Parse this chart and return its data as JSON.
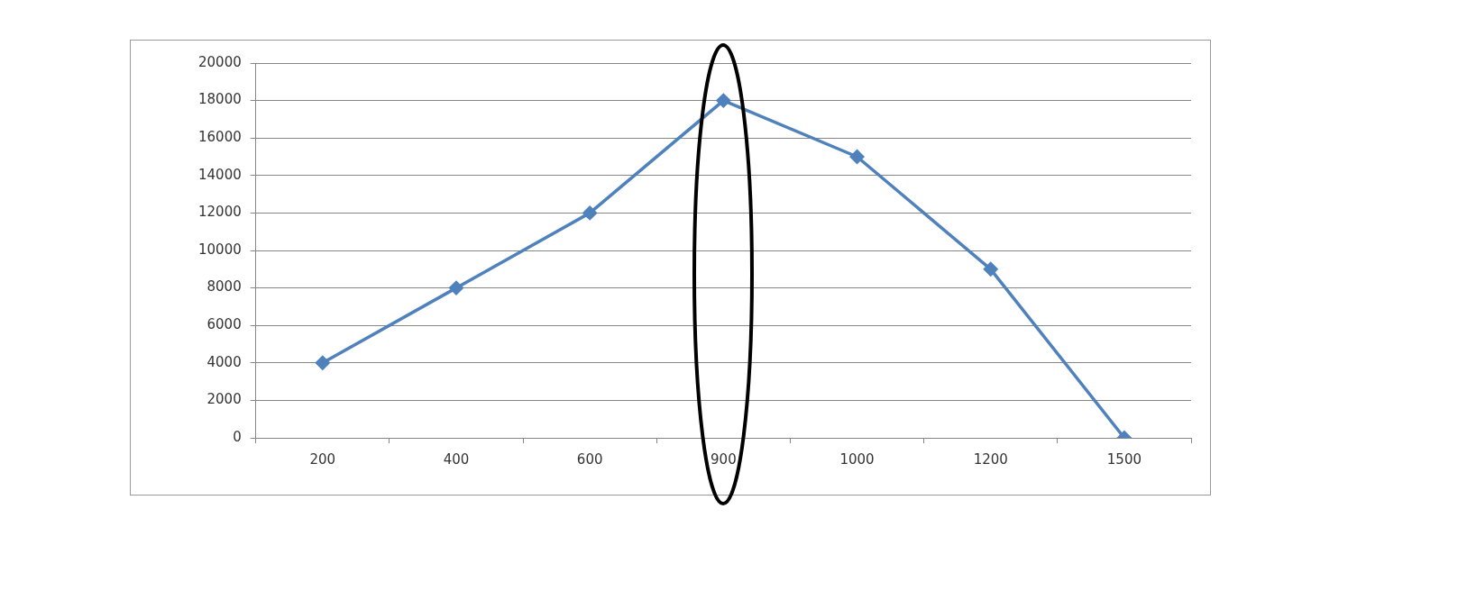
{
  "chart_data": {
    "type": "line",
    "categories": [
      "200",
      "400",
      "600",
      "900",
      "1000",
      "1200",
      "1500"
    ],
    "series": [
      {
        "color": "#4f81bd",
        "values": [
          4000,
          8000,
          12000,
          18000,
          15000,
          9000,
          0
        ]
      }
    ],
    "ylim": [
      0,
      20000
    ],
    "yticks": [
      0,
      2000,
      4000,
      6000,
      8000,
      10000,
      12000,
      14000,
      16000,
      18000,
      20000
    ],
    "grid": "y",
    "legend": false,
    "marker": "diamond",
    "line_style": "solid"
  }
}
